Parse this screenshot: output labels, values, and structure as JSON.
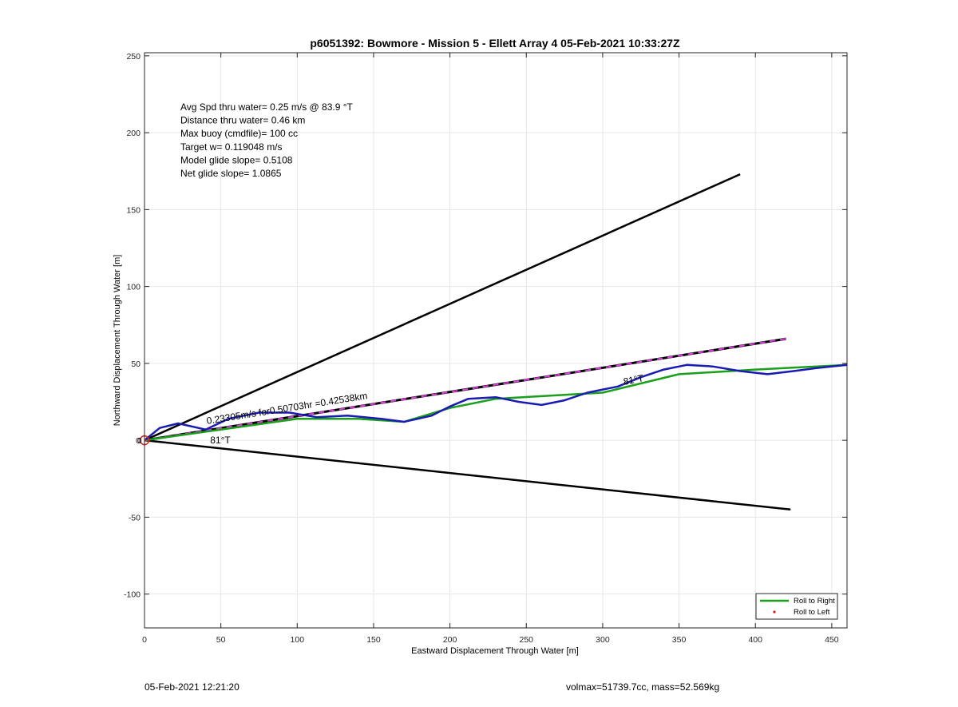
{
  "chart_data": {
    "type": "line",
    "title": "p6051392: Bowmore - Mission 5 - Ellett Array 4 05-Feb-2021 10:33:27Z",
    "xlabel": "Eastward Displacement Through Water [m]",
    "ylabel": "Northward Displacement Through Water [m]",
    "xlim": [
      0,
      460
    ],
    "ylim": [
      -122,
      252
    ],
    "xticks": [
      0,
      50,
      100,
      150,
      200,
      250,
      300,
      350,
      400,
      450
    ],
    "yticks": [
      -100,
      -50,
      0,
      50,
      100,
      150,
      200,
      250
    ],
    "grid": true,
    "legend": {
      "placement": "bottom-right",
      "entries": [
        "Roll to Right",
        "Roll to Left"
      ]
    },
    "info_lines": [
      "Avg Spd thru water=  0.25 m/s @  83.9 °T",
      "Distance thru water=  0.46 km",
      "Max buoy (cmdfile)= 100 cc",
      "Target w= 0.119048 m/s",
      "Model glide slope= 0.5108",
      "Net glide slope= 1.0865"
    ],
    "annotations": {
      "speed_label": "0.23305m/s for0.50703hr =0.42538km",
      "lower_heading": "81°T",
      "upper_heading": "81°T"
    },
    "series": [
      {
        "name": "Roll to Right",
        "color": "#1a9f1a",
        "x": [
          0,
          50,
          100,
          140,
          170,
          200,
          230,
          300,
          350,
          400,
          460
        ],
        "y": [
          0,
          7,
          14,
          14,
          12,
          21,
          27,
          31,
          43,
          46,
          49
        ]
      },
      {
        "name": "Roll to Left",
        "color": "#e0201c",
        "x": [
          0
        ],
        "y": [
          0
        ]
      }
    ],
    "blue_track": {
      "color": "#1a1ab4",
      "x": [
        0,
        10,
        22,
        40,
        55,
        75,
        95,
        113,
        133,
        155,
        170,
        188,
        200,
        212,
        230,
        245,
        260,
        275,
        290,
        310,
        325,
        340,
        355,
        372,
        390,
        408,
        425,
        440,
        460
      ],
      "y": [
        0,
        8,
        11,
        7,
        14,
        18,
        18,
        15,
        16,
        14,
        12,
        16,
        22,
        27,
        28,
        25,
        23,
        26,
        31,
        35,
        41,
        46,
        49,
        48,
        45,
        43,
        45,
        47,
        49
      ]
    },
    "cone_lines": {
      "upper": {
        "x": [
          0,
          390
        ],
        "y": [
          0,
          173
        ]
      },
      "lower": {
        "x": [
          0,
          423
        ],
        "y": [
          0,
          -45
        ]
      },
      "heading": {
        "x": [
          0,
          420
        ],
        "y": [
          0,
          66
        ]
      }
    }
  },
  "footer": {
    "date": "05-Feb-2021 12:21:20",
    "volmax": "volmax=51739.7cc, mass=52.569kg"
  }
}
